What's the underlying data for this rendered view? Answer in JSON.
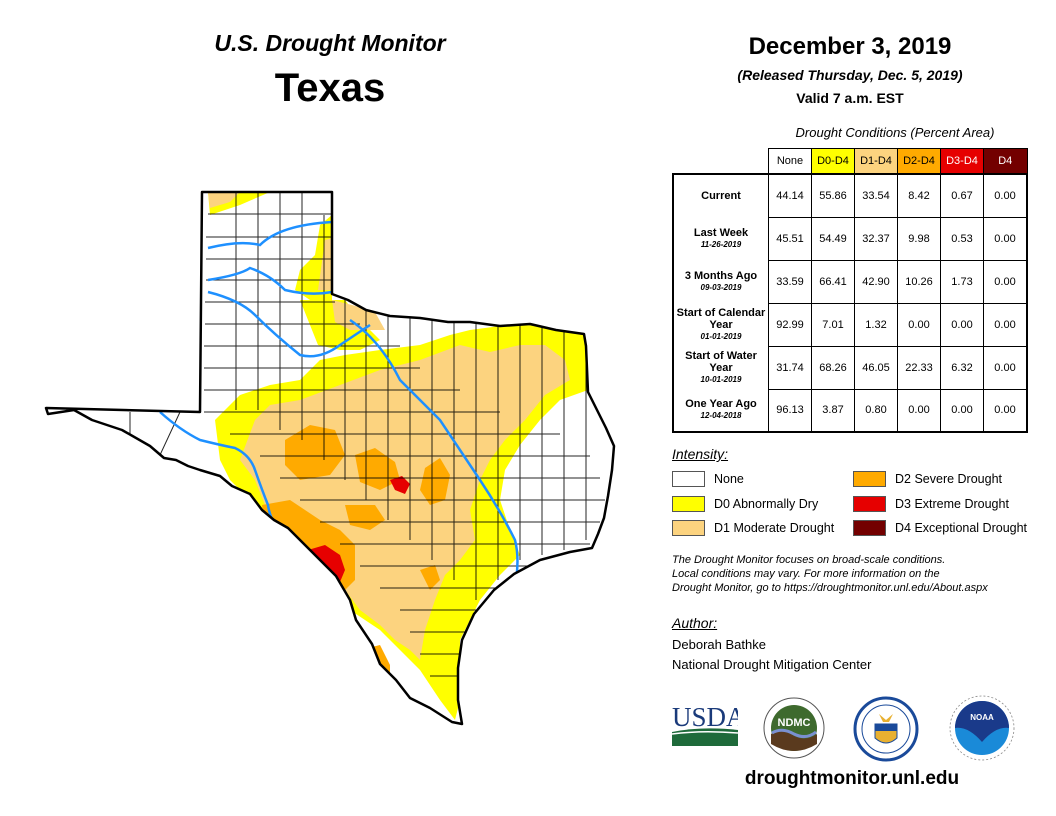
{
  "header": {
    "product": "U.S. Drought Monitor",
    "state": "Texas",
    "date": "December 3, 2019",
    "released": "(Released Thursday, Dec. 5, 2019)",
    "valid": "Valid 7 a.m. EST"
  },
  "table": {
    "caption": "Drought Conditions (Percent Area)",
    "columns": [
      {
        "label": "None",
        "bg": "#ffffff",
        "fg": "#000000"
      },
      {
        "label": "D0-D4",
        "bg": "#ffff00",
        "fg": "#000000"
      },
      {
        "label": "D1-D4",
        "bg": "#fcd37f",
        "fg": "#000000"
      },
      {
        "label": "D2-D4",
        "bg": "#ffaa00",
        "fg": "#000000"
      },
      {
        "label": "D3-D4",
        "bg": "#e60000",
        "fg": "#ffffff"
      },
      {
        "label": "D4",
        "bg": "#730000",
        "fg": "#ffffff"
      }
    ],
    "rows": [
      {
        "label": "Current",
        "sub": "",
        "values": [
          "44.14",
          "55.86",
          "33.54",
          "8.42",
          "0.67",
          "0.00"
        ]
      },
      {
        "label": "Last Week",
        "sub": "11-26-2019",
        "values": [
          "45.51",
          "54.49",
          "32.37",
          "9.98",
          "0.53",
          "0.00"
        ]
      },
      {
        "label": "3 Months Ago",
        "sub": "09-03-2019",
        "values": [
          "33.59",
          "66.41",
          "42.90",
          "10.26",
          "1.73",
          "0.00"
        ]
      },
      {
        "label": "Start of Calendar Year",
        "sub": "01-01-2019",
        "values": [
          "92.99",
          "7.01",
          "1.32",
          "0.00",
          "0.00",
          "0.00"
        ]
      },
      {
        "label": "Start of Water Year",
        "sub": "10-01-2019",
        "values": [
          "31.74",
          "68.26",
          "46.05",
          "22.33",
          "6.32",
          "0.00"
        ]
      },
      {
        "label": "One Year Ago",
        "sub": "12-04-2018",
        "values": [
          "96.13",
          "3.87",
          "0.80",
          "0.00",
          "0.00",
          "0.00"
        ]
      }
    ]
  },
  "legend": {
    "title": "Intensity:",
    "items": [
      {
        "label": "None",
        "color": "#ffffff"
      },
      {
        "label": "D0 Abnormally Dry",
        "color": "#ffff00"
      },
      {
        "label": "D1 Moderate Drought",
        "color": "#fcd37f"
      },
      {
        "label": "D2 Severe Drought",
        "color": "#ffaa00"
      },
      {
        "label": "D3 Extreme Drought",
        "color": "#e60000"
      },
      {
        "label": "D4 Exceptional Drought",
        "color": "#730000"
      }
    ]
  },
  "note": {
    "line1": "The Drought Monitor focuses on broad-scale conditions.",
    "line2": "Local conditions may vary. For more information on the",
    "line3": "Drought Monitor, go to https://droughtmonitor.unl.edu/About.aspx"
  },
  "author": {
    "title": "Author:",
    "name": "Deborah Bathke",
    "org": "National Drought Mitigation Center"
  },
  "logos": {
    "usda": "USDA",
    "ndmc": "NDMC",
    "noaa": "NOAA"
  },
  "website": "droughtmonitor.unl.edu",
  "colors": {
    "river": "#1e90ff",
    "border": "#000000"
  }
}
